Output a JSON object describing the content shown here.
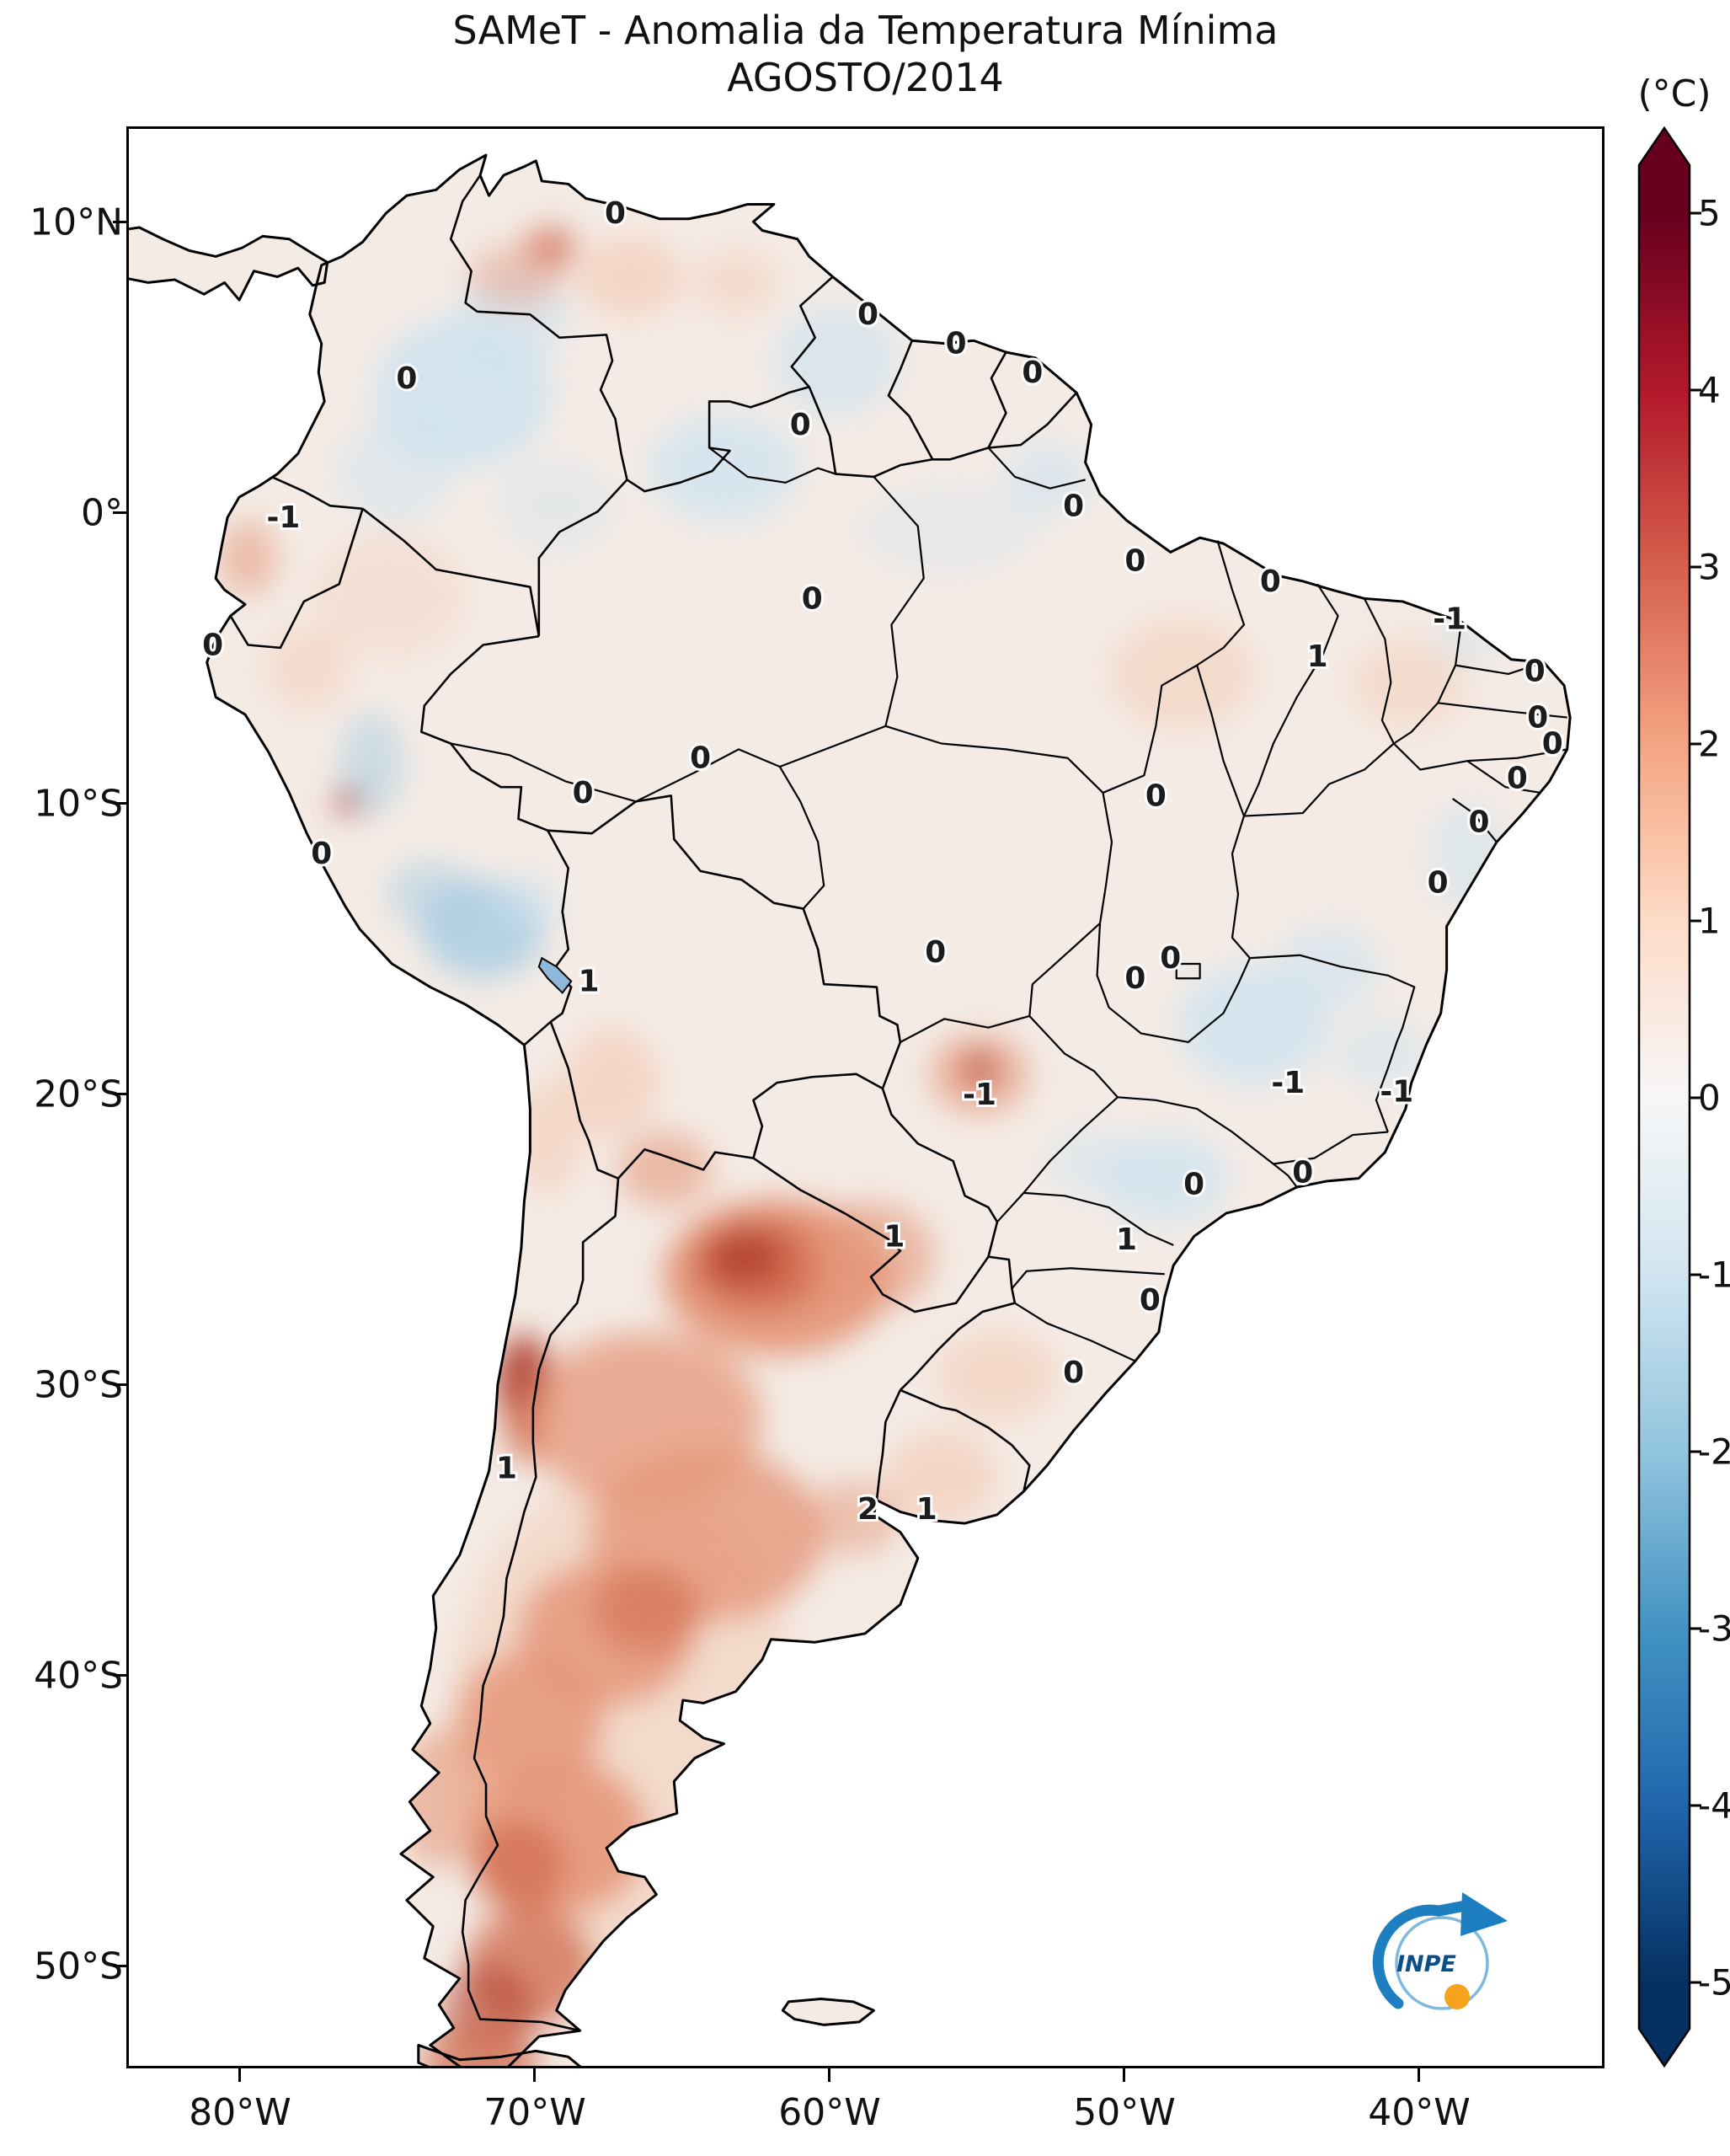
{
  "title": {
    "line1": "SAMeT - Anomalia da Temperatura Mínima",
    "line2": "AGOSTO/2014"
  },
  "colorbar": {
    "unit": "(°C)",
    "tick_values": [
      5,
      4,
      3,
      2,
      1,
      0,
      -1,
      -2,
      -3,
      -4,
      -5
    ],
    "range_min": -5,
    "range_max": 5,
    "colors_top_to_bottom": [
      "#67001f",
      "#b2182b",
      "#d6604d",
      "#f4a582",
      "#fddbc7",
      "#f7f7f7",
      "#d1e5f0",
      "#92c5de",
      "#4393c3",
      "#2166ac",
      "#053061"
    ]
  },
  "axes": {
    "lat_ticks": [
      {
        "label": "10°N",
        "deg": 10
      },
      {
        "label": "0°",
        "deg": 0
      },
      {
        "label": "10°S",
        "deg": -10
      },
      {
        "label": "20°S",
        "deg": -20
      },
      {
        "label": "30°S",
        "deg": -30
      },
      {
        "label": "40°S",
        "deg": -40
      },
      {
        "label": "50°S",
        "deg": -50
      }
    ],
    "lon_ticks": [
      {
        "label": "80°W",
        "deg": -80
      },
      {
        "label": "70°W",
        "deg": -70
      },
      {
        "label": "60°W",
        "deg": -60
      },
      {
        "label": "50°W",
        "deg": -50
      },
      {
        "label": "40°W",
        "deg": -40
      }
    ]
  },
  "map": {
    "type": "anomaly-heatmap",
    "anomaly_labels": [
      {
        "value": "0",
        "lon": -67.3,
        "lat": 10.4
      },
      {
        "value": "0",
        "lon": -74.4,
        "lat": 4.7
      },
      {
        "value": "0",
        "lon": -58.7,
        "lat": 6.9
      },
      {
        "value": "0",
        "lon": -55.7,
        "lat": 5.9
      },
      {
        "value": "0",
        "lon": -53.1,
        "lat": 4.9
      },
      {
        "value": "0",
        "lon": -61.0,
        "lat": 3.1
      },
      {
        "value": "-1",
        "lon": -78.6,
        "lat": -0.1
      },
      {
        "value": "0",
        "lon": -51.7,
        "lat": 0.3
      },
      {
        "value": "0",
        "lon": -49.6,
        "lat": -1.6
      },
      {
        "value": "0",
        "lon": -60.6,
        "lat": -2.9
      },
      {
        "value": "0",
        "lon": -45.0,
        "lat": -2.3
      },
      {
        "value": "1",
        "lon": -43.4,
        "lat": -4.9
      },
      {
        "value": "-1",
        "lon": -38.9,
        "lat": -3.6
      },
      {
        "value": "0",
        "lon": -36.0,
        "lat": -5.4
      },
      {
        "value": "0",
        "lon": -35.9,
        "lat": -7.0
      },
      {
        "value": "0",
        "lon": -35.4,
        "lat": -7.9
      },
      {
        "value": "0",
        "lon": -68.4,
        "lat": -9.6
      },
      {
        "value": "0",
        "lon": -64.4,
        "lat": -8.4
      },
      {
        "value": "0",
        "lon": -48.9,
        "lat": -9.7
      },
      {
        "value": "0",
        "lon": -36.6,
        "lat": -9.1
      },
      {
        "value": "0",
        "lon": -37.9,
        "lat": -10.6
      },
      {
        "value": "0",
        "lon": -81.0,
        "lat": -4.5
      },
      {
        "value": "0",
        "lon": -77.3,
        "lat": -11.7
      },
      {
        "value": "0",
        "lon": -39.3,
        "lat": -12.7
      },
      {
        "value": "1",
        "lon": -68.2,
        "lat": -16.1
      },
      {
        "value": "0",
        "lon": -56.4,
        "lat": -15.1
      },
      {
        "value": "0",
        "lon": -48.4,
        "lat": -15.3
      },
      {
        "value": "0",
        "lon": -49.6,
        "lat": -16.0
      },
      {
        "value": "-1",
        "lon": -44.4,
        "lat": -19.6
      },
      {
        "value": "-1",
        "lon": -40.7,
        "lat": -19.9
      },
      {
        "value": "-1",
        "lon": -54.9,
        "lat": -20.0
      },
      {
        "value": "0",
        "lon": -47.6,
        "lat": -23.1
      },
      {
        "value": "0",
        "lon": -43.9,
        "lat": -22.7
      },
      {
        "value": "1",
        "lon": -57.8,
        "lat": -24.9
      },
      {
        "value": "1",
        "lon": -49.9,
        "lat": -25.0
      },
      {
        "value": "0",
        "lon": -49.1,
        "lat": -27.1
      },
      {
        "value": "0",
        "lon": -51.7,
        "lat": -29.6
      },
      {
        "value": "1",
        "lon": -71.0,
        "lat": -32.9
      },
      {
        "value": "2",
        "lon": -58.7,
        "lat": -34.3
      },
      {
        "value": "1",
        "lon": -56.7,
        "lat": -34.3
      }
    ]
  },
  "logo": {
    "text": "INPE"
  }
}
